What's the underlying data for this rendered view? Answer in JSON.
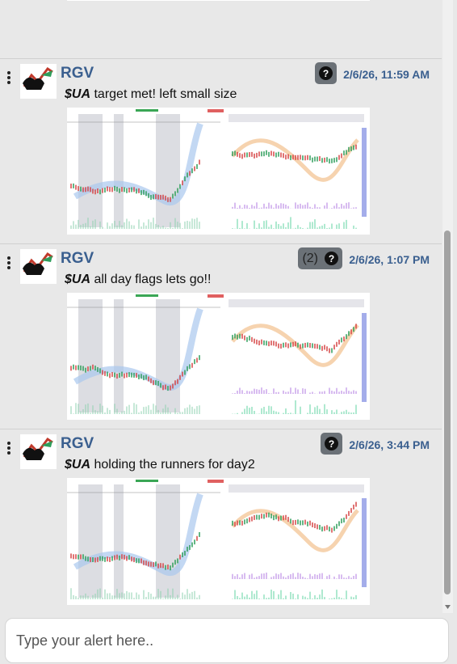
{
  "posts": [
    {
      "user": "RGV",
      "time": "2/6/26, 11:59 AM",
      "ticker": "$UA",
      "message": "target met! left small size"
    },
    {
      "user": "RGV",
      "count": "(2)",
      "time": "2/6/26, 1:07 PM",
      "ticker": "$UA",
      "message": "all day flags lets go!!"
    },
    {
      "user": "RGV",
      "time": "2/6/26, 3:44 PM",
      "ticker": "$UA",
      "message": "holding the runners for day2"
    }
  ],
  "input": {
    "placeholder": "Type your alert here.."
  }
}
